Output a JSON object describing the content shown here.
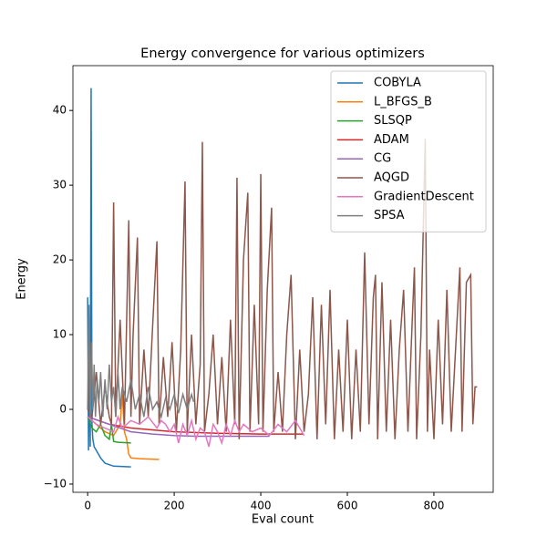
{
  "chart_data": {
    "type": "line",
    "title": "Energy convergence for various optimizers",
    "xlabel": "Eval count",
    "ylabel": "Energy",
    "xlim": [
      -34,
      937
    ],
    "ylim": [
      -11.1,
      46
    ],
    "xticks": [
      0,
      200,
      400,
      600,
      800
    ],
    "yticks": [
      {
        "value": -10,
        "label": "−10"
      },
      0,
      10,
      20,
      30,
      40
    ],
    "legend": "upper right",
    "series": [
      {
        "name": "COBYLA",
        "color": "#1f77b4",
        "x": [
          0,
          2,
          4,
          6,
          8,
          10,
          12,
          15,
          20,
          25,
          30,
          40,
          50,
          60,
          100
        ],
        "values": [
          15,
          -5.5,
          10,
          -5,
          43,
          -2,
          -4,
          -5,
          -5.5,
          -6,
          -6.5,
          -7.2,
          -7.4,
          -7.6,
          -7.7
        ]
      },
      {
        "name": "L_BFGS_B",
        "color": "#ff7f0e",
        "x": [
          0,
          20,
          40,
          60,
          75,
          80,
          85,
          90,
          95,
          100,
          120,
          165
        ],
        "values": [
          -1,
          -2,
          -3,
          -3.5,
          -2,
          2,
          -3,
          -4,
          -6,
          -6.5,
          -6.6,
          -6.7
        ]
      },
      {
        "name": "SLSQP",
        "color": "#2ca02c",
        "x": [
          0,
          10,
          20,
          30,
          40,
          50,
          55,
          60,
          70,
          100
        ],
        "values": [
          -1,
          -2.5,
          -3,
          -2,
          -3.5,
          -4,
          -2,
          -4.3,
          -4.4,
          -4.5
        ]
      },
      {
        "name": "ADAM",
        "color": "#d62728",
        "x": [
          0,
          50,
          100,
          200,
          300,
          400,
          500
        ],
        "values": [
          -1,
          -2,
          -2.5,
          -3,
          -3.2,
          -3.3,
          -3.3
        ]
      },
      {
        "name": "CG",
        "color": "#9467bd",
        "x": [
          0,
          50,
          100,
          150,
          200,
          250,
          350,
          420
        ],
        "values": [
          -1,
          -2,
          -3,
          -3.3,
          -3.5,
          -3.6,
          -3.6,
          -3.6
        ]
      },
      {
        "name": "AQGD",
        "color": "#8c564b",
        "x": [
          0,
          10,
          20,
          30,
          40,
          50,
          55,
          60,
          65,
          75,
          85,
          95,
          100,
          105,
          115,
          120,
          130,
          140,
          150,
          160,
          165,
          175,
          185,
          195,
          205,
          215,
          225,
          230,
          240,
          250,
          260,
          265,
          270,
          280,
          290,
          300,
          310,
          320,
          330,
          340,
          345,
          350,
          360,
          370,
          375,
          385,
          395,
          400,
          405,
          415,
          425,
          430,
          440,
          450,
          460,
          470,
          480,
          490,
          500,
          510,
          520,
          530,
          540,
          550,
          560,
          570,
          580,
          590,
          600,
          610,
          620,
          630,
          640,
          650,
          660,
          665,
          670,
          680,
          690,
          700,
          710,
          720,
          730,
          740,
          750,
          755,
          760,
          770,
          780,
          785,
          790,
          800,
          810,
          820,
          830,
          840,
          850,
          860,
          865,
          875,
          885,
          890,
          895,
          900
        ],
        "values": [
          0,
          -1,
          5,
          -2,
          3,
          -1,
          -2,
          27.7,
          -1,
          12,
          -2,
          25.3,
          -1,
          10,
          23,
          -2,
          8,
          -1,
          11,
          22.5,
          -2,
          7,
          -1,
          9,
          -3,
          8,
          30.5,
          -3,
          10,
          -2,
          6,
          35.8,
          -3,
          2,
          10,
          -2,
          7,
          -3,
          12,
          -2,
          31,
          -4,
          20,
          29,
          -3,
          14,
          -2,
          31.5,
          -3,
          16,
          27,
          -3,
          5,
          -3,
          10,
          18,
          -4,
          8,
          -3,
          2,
          15,
          -4,
          14,
          -2,
          16,
          -4,
          8,
          -3,
          12,
          -4,
          8,
          -3,
          21,
          -2,
          15,
          18,
          -4,
          17,
          -3,
          12,
          -4,
          8,
          16,
          -3,
          12,
          19,
          -4,
          10,
          36.2,
          -3,
          8,
          -4,
          12,
          -2,
          16,
          -3,
          8,
          19,
          -3,
          17,
          18,
          -2,
          3,
          3
        ]
      },
      {
        "name": "GradientDescent",
        "color": "#e377c2",
        "x": [
          0,
          20,
          40,
          60,
          70,
          80,
          100,
          120,
          140,
          160,
          170,
          180,
          190,
          200,
          210,
          220,
          230,
          240,
          250,
          260,
          270,
          280,
          290,
          300,
          310,
          320,
          330,
          340,
          350,
          360,
          380,
          400,
          420,
          440,
          460,
          480,
          500
        ],
        "values": [
          -1,
          -2,
          -2.5,
          -3,
          -1,
          -2.5,
          -1.5,
          -2,
          -1,
          -2.5,
          -1.5,
          -2,
          -3,
          -2,
          -4.5,
          -2,
          -3.5,
          -1.5,
          -4,
          -2.5,
          -3,
          -5,
          -2,
          -3,
          -4.5,
          -2,
          -3.5,
          -1.5,
          -3,
          -2,
          -3,
          -2.5,
          -3.5,
          -2,
          -3,
          -1.5,
          -3.5
        ]
      },
      {
        "name": "SPSA",
        "color": "#7f7f7f",
        "x": [
          0,
          3,
          6,
          9,
          12,
          15,
          18,
          22,
          26,
          30,
          35,
          40,
          45,
          50,
          55,
          60,
          65,
          70,
          75,
          80,
          90,
          100,
          110,
          120,
          130,
          140,
          150,
          160,
          170,
          180,
          190,
          200,
          210,
          220,
          230,
          240,
          245
        ],
        "values": [
          0,
          14,
          -1,
          9,
          0,
          6,
          -1,
          4,
          1,
          5,
          -1,
          4,
          0,
          6,
          1,
          3,
          -1,
          5,
          0,
          3,
          1,
          4,
          0,
          2,
          -1,
          3,
          0,
          1,
          -1,
          1.5,
          0,
          2,
          -0.5,
          2,
          0,
          2,
          1
        ]
      }
    ]
  }
}
